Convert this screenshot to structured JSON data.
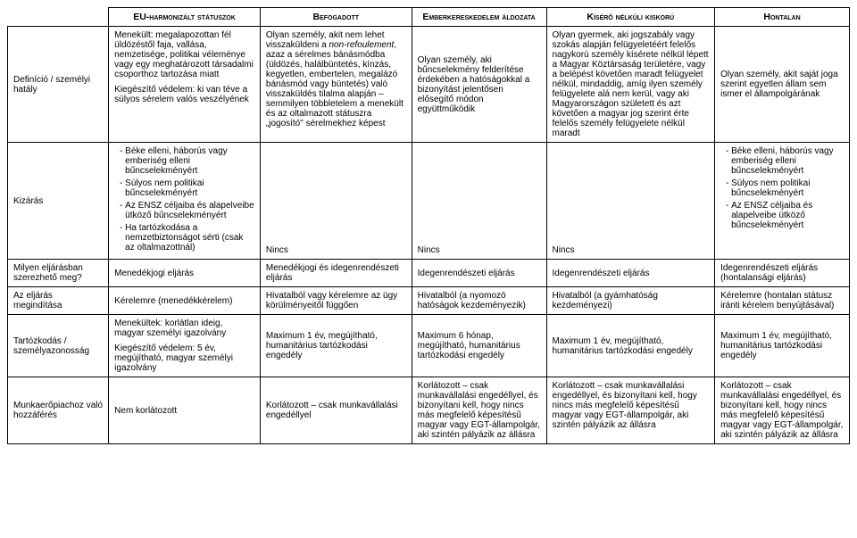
{
  "fontsize_body": 10,
  "colors": {
    "border": "#000000",
    "text": "#000000",
    "bg": "#ffffff"
  },
  "headers": {
    "row": "",
    "c1": "EU-harmonizált státuszok",
    "c2": "Befogadott",
    "c3": "Emberkereskedelem áldozata",
    "c4": "Kísérő nélküli kiskorú",
    "c5": "Hontalan"
  },
  "rows": {
    "def": {
      "label": "Definíció / személyi hatály",
      "c1_p1": "Menekült: megalapozottan fél üldözéstől faja, vallása, nemzetisége, politikai véleménye vagy egy meghatározott társadalmi csoporthoz tartozása miatt",
      "c1_p2": "Kiegészítő védelem: ki van téve a súlyos sérelem valós veszélyének",
      "c2_pre": "Olyan személy, akit nem lehet visszaküldeni a ",
      "c2_em": "non-refoulement",
      "c2_post": ", azaz a sérelmes bánásmódba (üldözés, halálbüntetés, kínzás, kegyetlen, embertelen, megalázó bánásmód vagy büntetés) való visszaküldés tilalma alapján – semmilyen többletelem a menekült és az oltalmazott státuszra „jogosító\" sérelmekhez képest",
      "c3": "Olyan személy, aki bűncselekmény felderítése érdekében a hatóságokkal a bizonyítást jelentősen elősegítő módon együttműködik",
      "c4": "Olyan gyermek, aki jogszabály vagy szokás alapján felügyeletéért felelős nagykorú személy kísérete nélkül lépett a Magyar Köztársaság területére, vagy a belépést követően maradt felügyelet nélkül, mindaddig, amíg ilyen személy felügyelete alá nem kerül, vagy aki Magyarországon született és azt követően a magyar jog szerint érte felelős személy felügyelete nélkül maradt",
      "c5": "Olyan személy, akit saját joga szerint egyetlen állam sem ismer el állampolgárának"
    },
    "kiz": {
      "label": "Kizárás",
      "c1_items": [
        "Béke elleni, háborús vagy emberiség elleni bűncselekményért",
        "Súlyos nem politikai bűncselekményért",
        "Az ENSZ céljaiba és alapelveibe ütköző bűncselekményért",
        "Ha tartózkodása a nemzetbiztonságot sérti (csak az oltalmazottnál)"
      ],
      "c2": "Nincs",
      "c3": "Nincs",
      "c4": "Nincs",
      "c5_items": [
        "Béke elleni, háborús vagy emberiség elleni bűncselekményért",
        "Súlyos nem politikai bűncselekményért",
        "Az ENSZ céljaiba és alapelveibe ütköző bűncselekményért"
      ]
    },
    "elj": {
      "label": "Milyen eljárásban szerezhető meg?",
      "c1": "Menedékjogi eljárás",
      "c2": "Menedékjogi és idegenrendészeti eljárás",
      "c3": "Idegenrendészeti eljárás",
      "c4": "Idegenrendészeti eljárás",
      "c5": "Idegenrendészeti eljárás (hontalansági eljárás)"
    },
    "ind": {
      "label": "Az eljárás megindítása",
      "c1": "Kérelemre (menedékkérelem)",
      "c2": "Hivatalból vagy kérelemre az ügy körülményeitől függően",
      "c3": "Hivatalból (a nyomozó hatóságok kezdeményezik)",
      "c4": "Hivatalból (a gyámhatóság kezdeményezi)",
      "c5": "Kérelemre (hontalan státusz iránti kérelem benyújtásával)"
    },
    "tart": {
      "label": "Tartózkodás / személyazonosság",
      "c1_p1": "Menekültek: korlátlan ideig, magyar személyi igazolvány",
      "c1_p2": "Kiegészítő védelem: 5 év, megújítható, magyar személyi igazolvány",
      "c2": "Maximum 1 év, megújítható, humanitárius tartózkodási engedély",
      "c3": "Maximum 6 hónap, megújítható, humanitárius tartózkodási engedély",
      "c4": "Maximum 1 év, megújítható, humanitárius tartózkodási engedély",
      "c5": "Maximum 1 év, megújítható, humanitárius tartózkodási engedély"
    },
    "munka": {
      "label": "Munkaerőpiachoz való hozzáférés",
      "c1": "Nem korlátozott",
      "c2": "Korlátozott – csak munkavállalási engedéllyel",
      "c3": "Korlátozott – csak munkavállalási engedéllyel, és bizonyítani kell, hogy nincs más megfelelő képesítésű magyar vagy EGT-állampolgár, aki szintén pályázik az állásra",
      "c4": "Korlátozott – csak munkavállalási engedéllyel, és bizonyítani kell, hogy nincs más megfelelő képesítésű magyar vagy EGT-állampolgár, aki szintén pályázik az állásra",
      "c5": "Korlátozott – csak munkavállalási engedéllyel, és bizonyítani kell, hogy nincs más megfelelő képesítésű magyar vagy EGT-állampolgár, aki szintén pályázik az állásra"
    }
  }
}
